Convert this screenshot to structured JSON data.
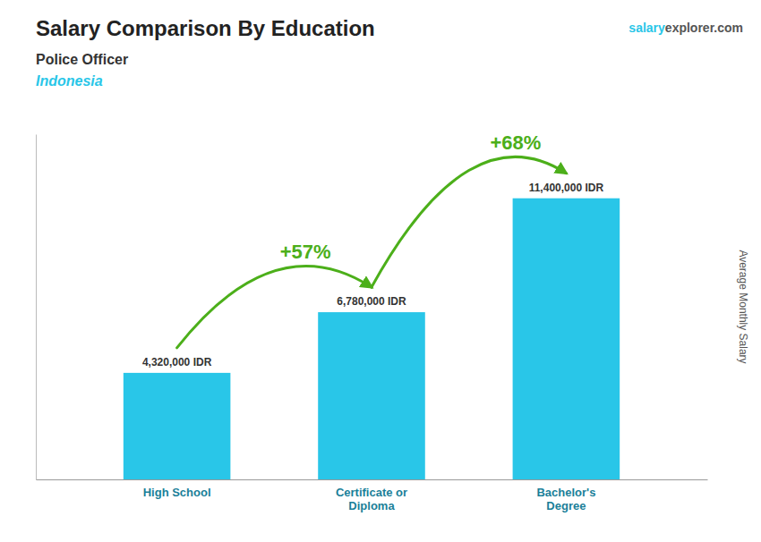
{
  "chart_data": {
    "type": "bar",
    "title": "Salary Comparison By Education",
    "subtitle": [
      "Police Officer",
      "Indonesia"
    ],
    "watermark": [
      "salary",
      "explorer.com"
    ],
    "ylabel": "Average Monthly Salary",
    "categories": [
      "High School",
      "Certificate or\nDiploma",
      "Bachelor's\nDegree"
    ],
    "values": [
      4320000,
      6780000,
      11400000
    ],
    "value_labels": [
      "4,320,000 IDR",
      "6,780,000 IDR",
      "11,400,000 IDR"
    ],
    "annotations": [
      "+57%",
      "+68%"
    ],
    "color": "#29c6e8",
    "ylim": [
      0,
      14000000
    ],
    "data_labels": true,
    "tick_labels": "x",
    "grid": false
  }
}
